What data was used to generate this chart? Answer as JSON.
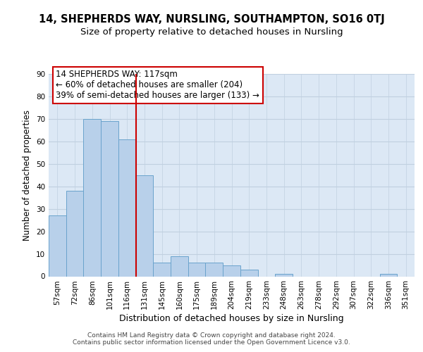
{
  "title1": "14, SHEPHERDS WAY, NURSLING, SOUTHAMPTON, SO16 0TJ",
  "title2": "Size of property relative to detached houses in Nursling",
  "xlabel": "Distribution of detached houses by size in Nursling",
  "ylabel": "Number of detached properties",
  "categories": [
    "57sqm",
    "72sqm",
    "86sqm",
    "101sqm",
    "116sqm",
    "131sqm",
    "145sqm",
    "160sqm",
    "175sqm",
    "189sqm",
    "204sqm",
    "219sqm",
    "233sqm",
    "248sqm",
    "263sqm",
    "278sqm",
    "292sqm",
    "307sqm",
    "322sqm",
    "336sqm",
    "351sqm"
  ],
  "values": [
    27,
    38,
    70,
    69,
    61,
    45,
    6,
    9,
    6,
    6,
    5,
    3,
    0,
    1,
    0,
    0,
    0,
    0,
    0,
    1,
    0
  ],
  "bar_color": "#b8d0ea",
  "bar_edge_color": "#6aa3cc",
  "vline_x": 4.5,
  "vline_color": "#cc0000",
  "annotation_text": "14 SHEPHERDS WAY: 117sqm\n← 60% of detached houses are smaller (204)\n39% of semi-detached houses are larger (133) →",
  "annotation_box_edge": "#cc0000",
  "ylim": [
    0,
    90
  ],
  "yticks": [
    0,
    10,
    20,
    30,
    40,
    50,
    60,
    70,
    80,
    90
  ],
  "grid_color": "#c0d0e0",
  "bg_color": "#dce8f5",
  "footer": "Contains HM Land Registry data © Crown copyright and database right 2024.\nContains public sector information licensed under the Open Government Licence v3.0.",
  "title1_fontsize": 10.5,
  "title2_fontsize": 9.5,
  "xlabel_fontsize": 9,
  "ylabel_fontsize": 8.5,
  "tick_fontsize": 7.5,
  "footer_fontsize": 6.5,
  "annotation_fontsize": 8.5
}
